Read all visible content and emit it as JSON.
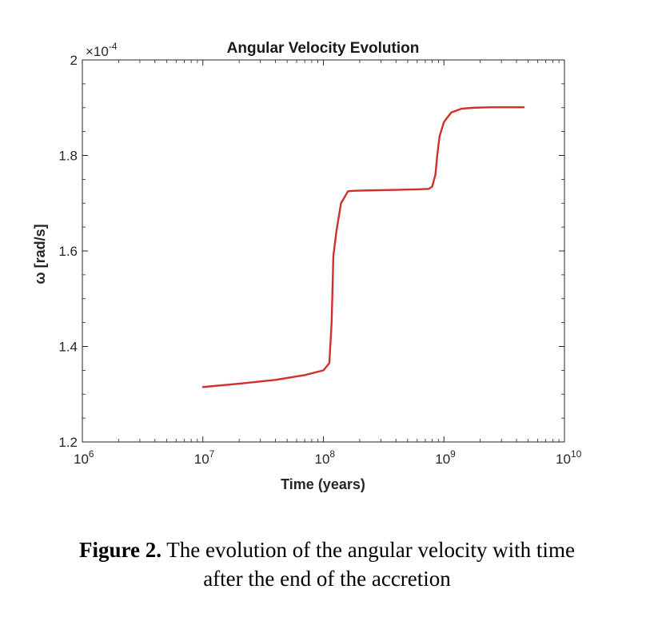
{
  "chart_data": {
    "type": "line",
    "title": "Angular Velocity Evolution",
    "xlabel": "Time (years)",
    "ylabel": "ω [rad/s]",
    "xscale": "log",
    "xlim": [
      1000000,
      10000000000
    ],
    "ylim": [
      1.2,
      2.0
    ],
    "y_multiplier_label": "×10",
    "y_multiplier_exponent": "-4",
    "x_ticks": [
      {
        "base": "10",
        "exp": "6"
      },
      {
        "base": "10",
        "exp": "7"
      },
      {
        "base": "10",
        "exp": "8"
      },
      {
        "base": "10",
        "exp": "9"
      },
      {
        "base": "10",
        "exp": "10"
      }
    ],
    "y_ticks": [
      {
        "value": 1.2,
        "label": "1.2"
      },
      {
        "value": 1.4,
        "label": "1.4"
      },
      {
        "value": 1.6,
        "label": "1.6"
      },
      {
        "value": 1.8,
        "label": "1.8"
      },
      {
        "value": 2.0,
        "label": "2"
      }
    ],
    "grid": false,
    "series": [
      {
        "name": "omega",
        "color": "#d0302a",
        "x": [
          10000000,
          20000000,
          40000000,
          70000000,
          100000000,
          112000000,
          117000000,
          121000000,
          128000000,
          140000000,
          160000000,
          180000000,
          250000000,
          400000000,
          600000000,
          750000000,
          800000000,
          850000000,
          880000000,
          920000000,
          1000000000,
          1150000000,
          1400000000,
          1800000000,
          2500000000,
          3500000000,
          4600000000
        ],
        "y": [
          1.315,
          1.322,
          1.33,
          1.34,
          1.35,
          1.365,
          1.45,
          1.59,
          1.64,
          1.7,
          1.725,
          1.726,
          1.727,
          1.728,
          1.729,
          1.73,
          1.735,
          1.76,
          1.8,
          1.84,
          1.87,
          1.89,
          1.898,
          1.9,
          1.901,
          1.901,
          1.901
        ]
      }
    ]
  },
  "caption": {
    "label": "Figure 2.",
    "text_line1": " The evolution of the angular velocity with time",
    "text_line2": "after the end of the accretion"
  }
}
